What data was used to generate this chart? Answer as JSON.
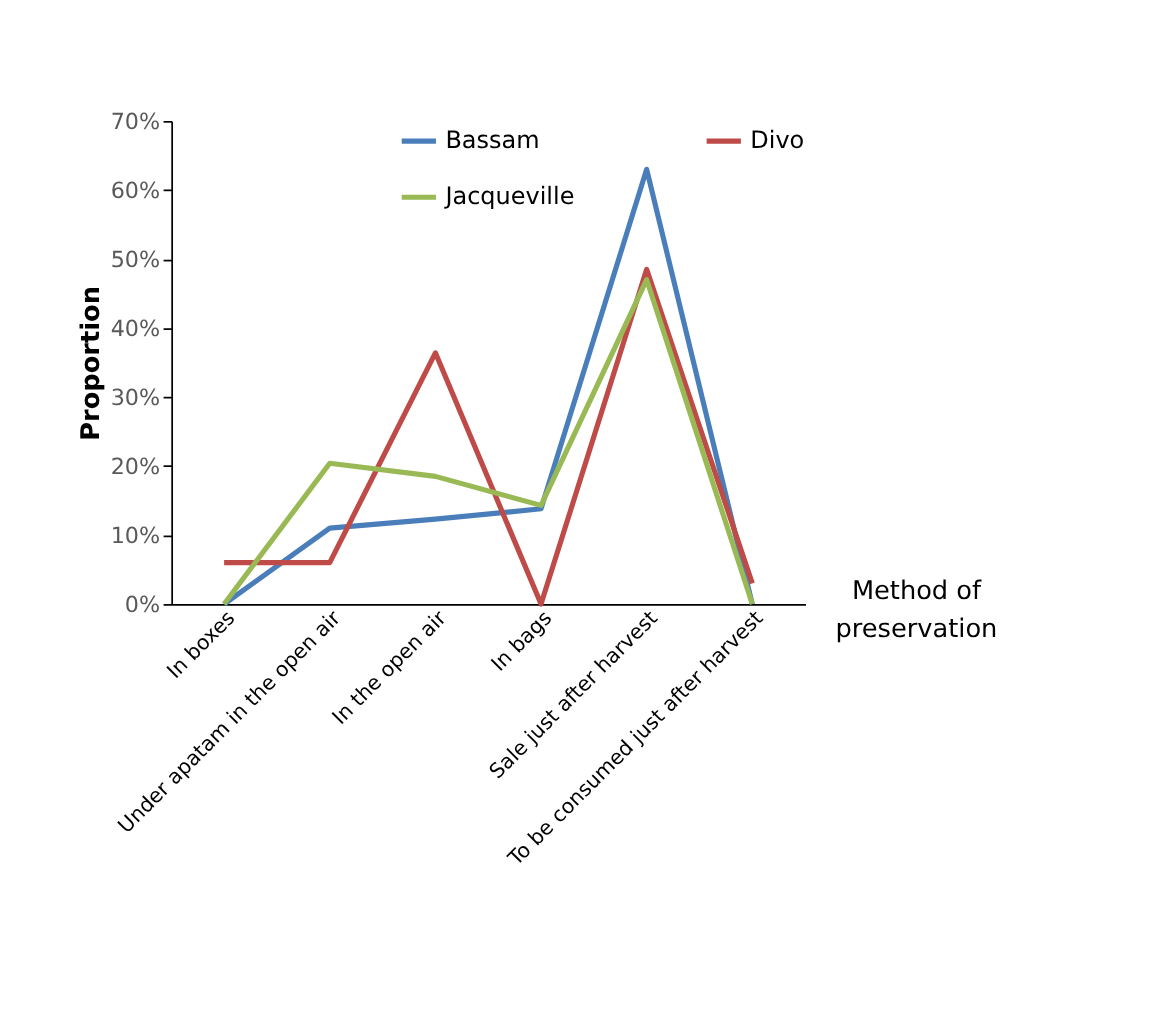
{
  "chart_data": {
    "type": "line",
    "ylabel": "Proportion",
    "xlabel": "Method of preservation",
    "categories": [
      "In boxes",
      "Under apatam in the open air",
      "In the open air",
      "In bags",
      "Sale just after harvest",
      "To be consumed just after harvest"
    ],
    "series": [
      {
        "name": "Bassam",
        "color": "#4a7ebb",
        "values": [
          0,
          11,
          12.3,
          13.8,
          63,
          0
        ]
      },
      {
        "name": "Divo",
        "color": "#be4b48",
        "values": [
          6,
          6,
          36.4,
          0,
          48.5,
          3
        ]
      },
      {
        "name": "Jacqueville",
        "color": "#98b954",
        "values": [
          0,
          20.4,
          18.5,
          14.3,
          47,
          0
        ]
      }
    ],
    "ylim": [
      0,
      70
    ],
    "yticks": [
      {
        "value": 0,
        "label": "0%"
      },
      {
        "value": 10,
        "label": "10%"
      },
      {
        "value": 20,
        "label": "20%"
      },
      {
        "value": 30,
        "label": "30%"
      },
      {
        "value": 40,
        "label": "40%"
      },
      {
        "value": 50,
        "label": "50%"
      },
      {
        "value": 60,
        "label": "60%"
      },
      {
        "value": 70,
        "label": "70%"
      }
    ],
    "grid": false,
    "legend": "top right",
    "marker": "none",
    "line_style": "solid"
  }
}
